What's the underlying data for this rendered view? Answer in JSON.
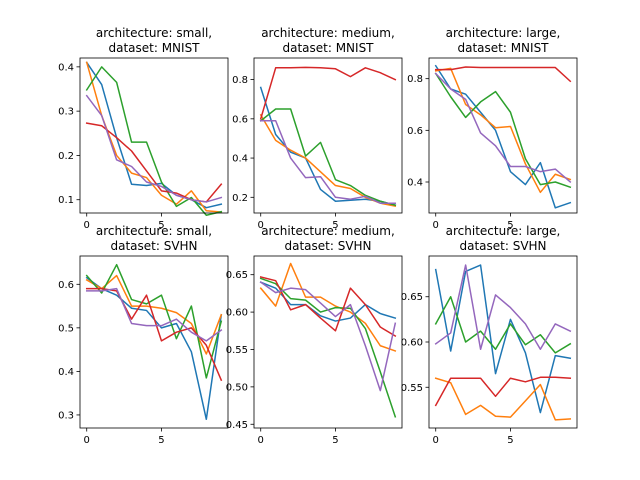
{
  "colors": [
    "#1f77b4",
    "#ff7f0e",
    "#2ca02c",
    "#d62728",
    "#9467bd"
  ],
  "chart_data": [
    {
      "type": "line",
      "title": [
        "architecture: small,",
        "dataset: MNIST"
      ],
      "x": [
        0,
        1,
        2,
        3,
        4,
        5,
        6,
        7,
        8,
        9
      ],
      "xlim": [
        -0.45,
        9.45
      ],
      "ylim": [
        0.07,
        0.42
      ],
      "xticks": [
        0,
        5
      ],
      "yticks": [
        0.1,
        0.2,
        0.3,
        0.4
      ],
      "ytick_labels": [
        "0.1",
        "0.2",
        "0.3",
        "0.4"
      ],
      "series": [
        {
          "values": [
            0.41,
            0.36,
            0.24,
            0.135,
            0.132,
            0.137,
            0.11,
            0.1,
            0.082,
            0.09
          ]
        },
        {
          "values": [
            0.41,
            0.29,
            0.2,
            0.16,
            0.15,
            0.11,
            0.09,
            0.12,
            0.075,
            0.072
          ]
        },
        {
          "values": [
            0.348,
            0.4,
            0.365,
            0.23,
            0.23,
            0.14,
            0.085,
            0.105,
            0.065,
            0.073
          ]
        },
        {
          "values": [
            0.273,
            0.267,
            0.24,
            0.21,
            0.165,
            0.12,
            0.115,
            0.1,
            0.095,
            0.135
          ]
        },
        {
          "values": [
            0.335,
            0.29,
            0.19,
            0.175,
            0.14,
            0.13,
            0.11,
            0.1,
            0.095,
            0.105
          ]
        }
      ]
    },
    {
      "type": "line",
      "title": [
        "architecture: medium,",
        "dataset: MNIST"
      ],
      "x": [
        0,
        1,
        2,
        3,
        4,
        5,
        6,
        7,
        8,
        9
      ],
      "xlim": [
        -0.45,
        9.45
      ],
      "ylim": [
        0.12,
        0.91
      ],
      "xticks": [
        0,
        5
      ],
      "yticks": [
        0.2,
        0.4,
        0.6,
        0.8
      ],
      "ytick_labels": [
        "0.2",
        "0.4",
        "0.6",
        "0.8"
      ],
      "series": [
        {
          "values": [
            0.76,
            0.52,
            0.43,
            0.4,
            0.24,
            0.18,
            0.185,
            0.19,
            0.18,
            0.16
          ]
        },
        {
          "values": [
            0.62,
            0.49,
            0.44,
            0.4,
            0.33,
            0.26,
            0.245,
            0.2,
            0.17,
            0.155
          ]
        },
        {
          "values": [
            0.59,
            0.65,
            0.65,
            0.41,
            0.48,
            0.29,
            0.26,
            0.21,
            0.18,
            0.16
          ]
        },
        {
          "values": [
            0.6,
            0.86,
            0.86,
            0.862,
            0.86,
            0.855,
            0.815,
            0.86,
            0.835,
            0.8
          ]
        },
        {
          "values": [
            0.59,
            0.59,
            0.4,
            0.3,
            0.305,
            0.2,
            0.19,
            0.205,
            0.17,
            0.17
          ]
        }
      ]
    },
    {
      "type": "line",
      "title": [
        "architecture: large,",
        "dataset: MNIST"
      ],
      "x": [
        0,
        1,
        2,
        3,
        4,
        5,
        6,
        7,
        8,
        9
      ],
      "xlim": [
        -0.45,
        9.45
      ],
      "ylim": [
        0.28,
        0.88
      ],
      "xticks": [
        0,
        5
      ],
      "yticks": [
        0.4,
        0.6,
        0.8
      ],
      "ytick_labels": [
        "0.4",
        "0.6",
        "0.8"
      ],
      "series": [
        {
          "values": [
            0.85,
            0.76,
            0.74,
            0.67,
            0.6,
            0.44,
            0.39,
            0.475,
            0.3,
            0.32
          ]
        },
        {
          "values": [
            0.83,
            0.84,
            0.7,
            0.66,
            0.61,
            0.615,
            0.47,
            0.36,
            0.43,
            0.41
          ]
        },
        {
          "values": [
            0.82,
            0.73,
            0.65,
            0.71,
            0.75,
            0.67,
            0.49,
            0.39,
            0.4,
            0.38
          ]
        },
        {
          "values": [
            0.835,
            0.835,
            0.845,
            0.843,
            0.843,
            0.843,
            0.843,
            0.843,
            0.843,
            0.79
          ]
        },
        {
          "values": [
            0.82,
            0.76,
            0.72,
            0.59,
            0.54,
            0.46,
            0.46,
            0.44,
            0.45,
            0.4
          ]
        }
      ]
    },
    {
      "type": "line",
      "title": [
        "architecture: small,",
        "dataset: SVHN"
      ],
      "x": [
        0,
        1,
        2,
        3,
        4,
        5,
        6,
        7,
        8,
        9
      ],
      "xlim": [
        -0.45,
        9.45
      ],
      "ylim": [
        0.27,
        0.665
      ],
      "xticks": [
        0,
        5
      ],
      "yticks": [
        0.3,
        0.4,
        0.5,
        0.6
      ],
      "ytick_labels": [
        "0.3",
        "0.4",
        "0.5",
        "0.6"
      ],
      "series": [
        {
          "values": [
            0.615,
            0.59,
            0.575,
            0.545,
            0.54,
            0.5,
            0.51,
            0.445,
            0.29,
            0.53
          ]
        },
        {
          "values": [
            0.61,
            0.59,
            0.62,
            0.55,
            0.55,
            0.545,
            0.535,
            0.51,
            0.44,
            0.53
          ]
        },
        {
          "values": [
            0.62,
            0.58,
            0.645,
            0.565,
            0.555,
            0.575,
            0.475,
            0.55,
            0.385,
            0.515
          ]
        },
        {
          "values": [
            0.59,
            0.59,
            0.585,
            0.52,
            0.575,
            0.47,
            0.49,
            0.5,
            0.46,
            0.38
          ]
        },
        {
          "values": [
            0.585,
            0.585,
            0.59,
            0.51,
            0.505,
            0.505,
            0.52,
            0.49,
            0.47,
            0.495
          ]
        }
      ]
    },
    {
      "type": "line",
      "title": [
        "architecture: medium,",
        "dataset: SVHN"
      ],
      "x": [
        0,
        1,
        2,
        3,
        4,
        5,
        6,
        7,
        8,
        9
      ],
      "xlim": [
        -0.45,
        9.45
      ],
      "ylim": [
        0.445,
        0.675
      ],
      "xticks": [
        0,
        5
      ],
      "yticks": [
        0.45,
        0.5,
        0.55,
        0.6,
        0.65
      ],
      "ytick_labels": [
        "0.45",
        "0.50",
        "0.55",
        "0.60",
        "0.65"
      ],
      "series": [
        {
          "values": [
            0.64,
            0.632,
            0.61,
            0.61,
            0.595,
            0.588,
            0.592,
            0.61,
            0.598,
            0.592
          ]
        },
        {
          "values": [
            0.632,
            0.608,
            0.665,
            0.62,
            0.62,
            0.608,
            0.6,
            0.585,
            0.555,
            0.548
          ]
        },
        {
          "values": [
            0.645,
            0.638,
            0.618,
            0.616,
            0.6,
            0.606,
            0.605,
            0.578,
            0.52,
            0.46
          ]
        },
        {
          "values": [
            0.647,
            0.642,
            0.603,
            0.61,
            0.592,
            0.575,
            0.632,
            0.61,
            0.58,
            0.568
          ]
        },
        {
          "values": [
            0.64,
            0.626,
            0.632,
            0.63,
            0.612,
            0.594,
            0.61,
            0.555,
            0.495,
            0.585
          ]
        }
      ]
    },
    {
      "type": "line",
      "title": [
        "architecture: large,",
        "dataset: SVHN"
      ],
      "x": [
        0,
        1,
        2,
        3,
        4,
        5,
        6,
        7,
        8,
        9
      ],
      "xlim": [
        -0.45,
        9.45
      ],
      "ylim": [
        0.505,
        0.695
      ],
      "xticks": [
        0,
        5
      ],
      "yticks": [
        0.55,
        0.6,
        0.65
      ],
      "ytick_labels": [
        "0.55",
        "0.60",
        "0.65"
      ],
      "series": [
        {
          "values": [
            0.68,
            0.59,
            0.678,
            0.685,
            0.565,
            0.625,
            0.588,
            0.522,
            0.585,
            0.582
          ]
        },
        {
          "values": [
            0.56,
            0.555,
            0.52,
            0.53,
            0.518,
            0.517,
            0.535,
            0.553,
            0.514,
            0.515
          ]
        },
        {
          "values": [
            0.62,
            0.65,
            0.6,
            0.612,
            0.592,
            0.62,
            0.597,
            0.608,
            0.588,
            0.598
          ]
        },
        {
          "values": [
            0.53,
            0.56,
            0.56,
            0.56,
            0.54,
            0.56,
            0.556,
            0.561,
            0.561,
            0.56
          ]
        },
        {
          "values": [
            0.598,
            0.61,
            0.685,
            0.592,
            0.652,
            0.638,
            0.62,
            0.592,
            0.62,
            0.612
          ]
        }
      ]
    }
  ]
}
